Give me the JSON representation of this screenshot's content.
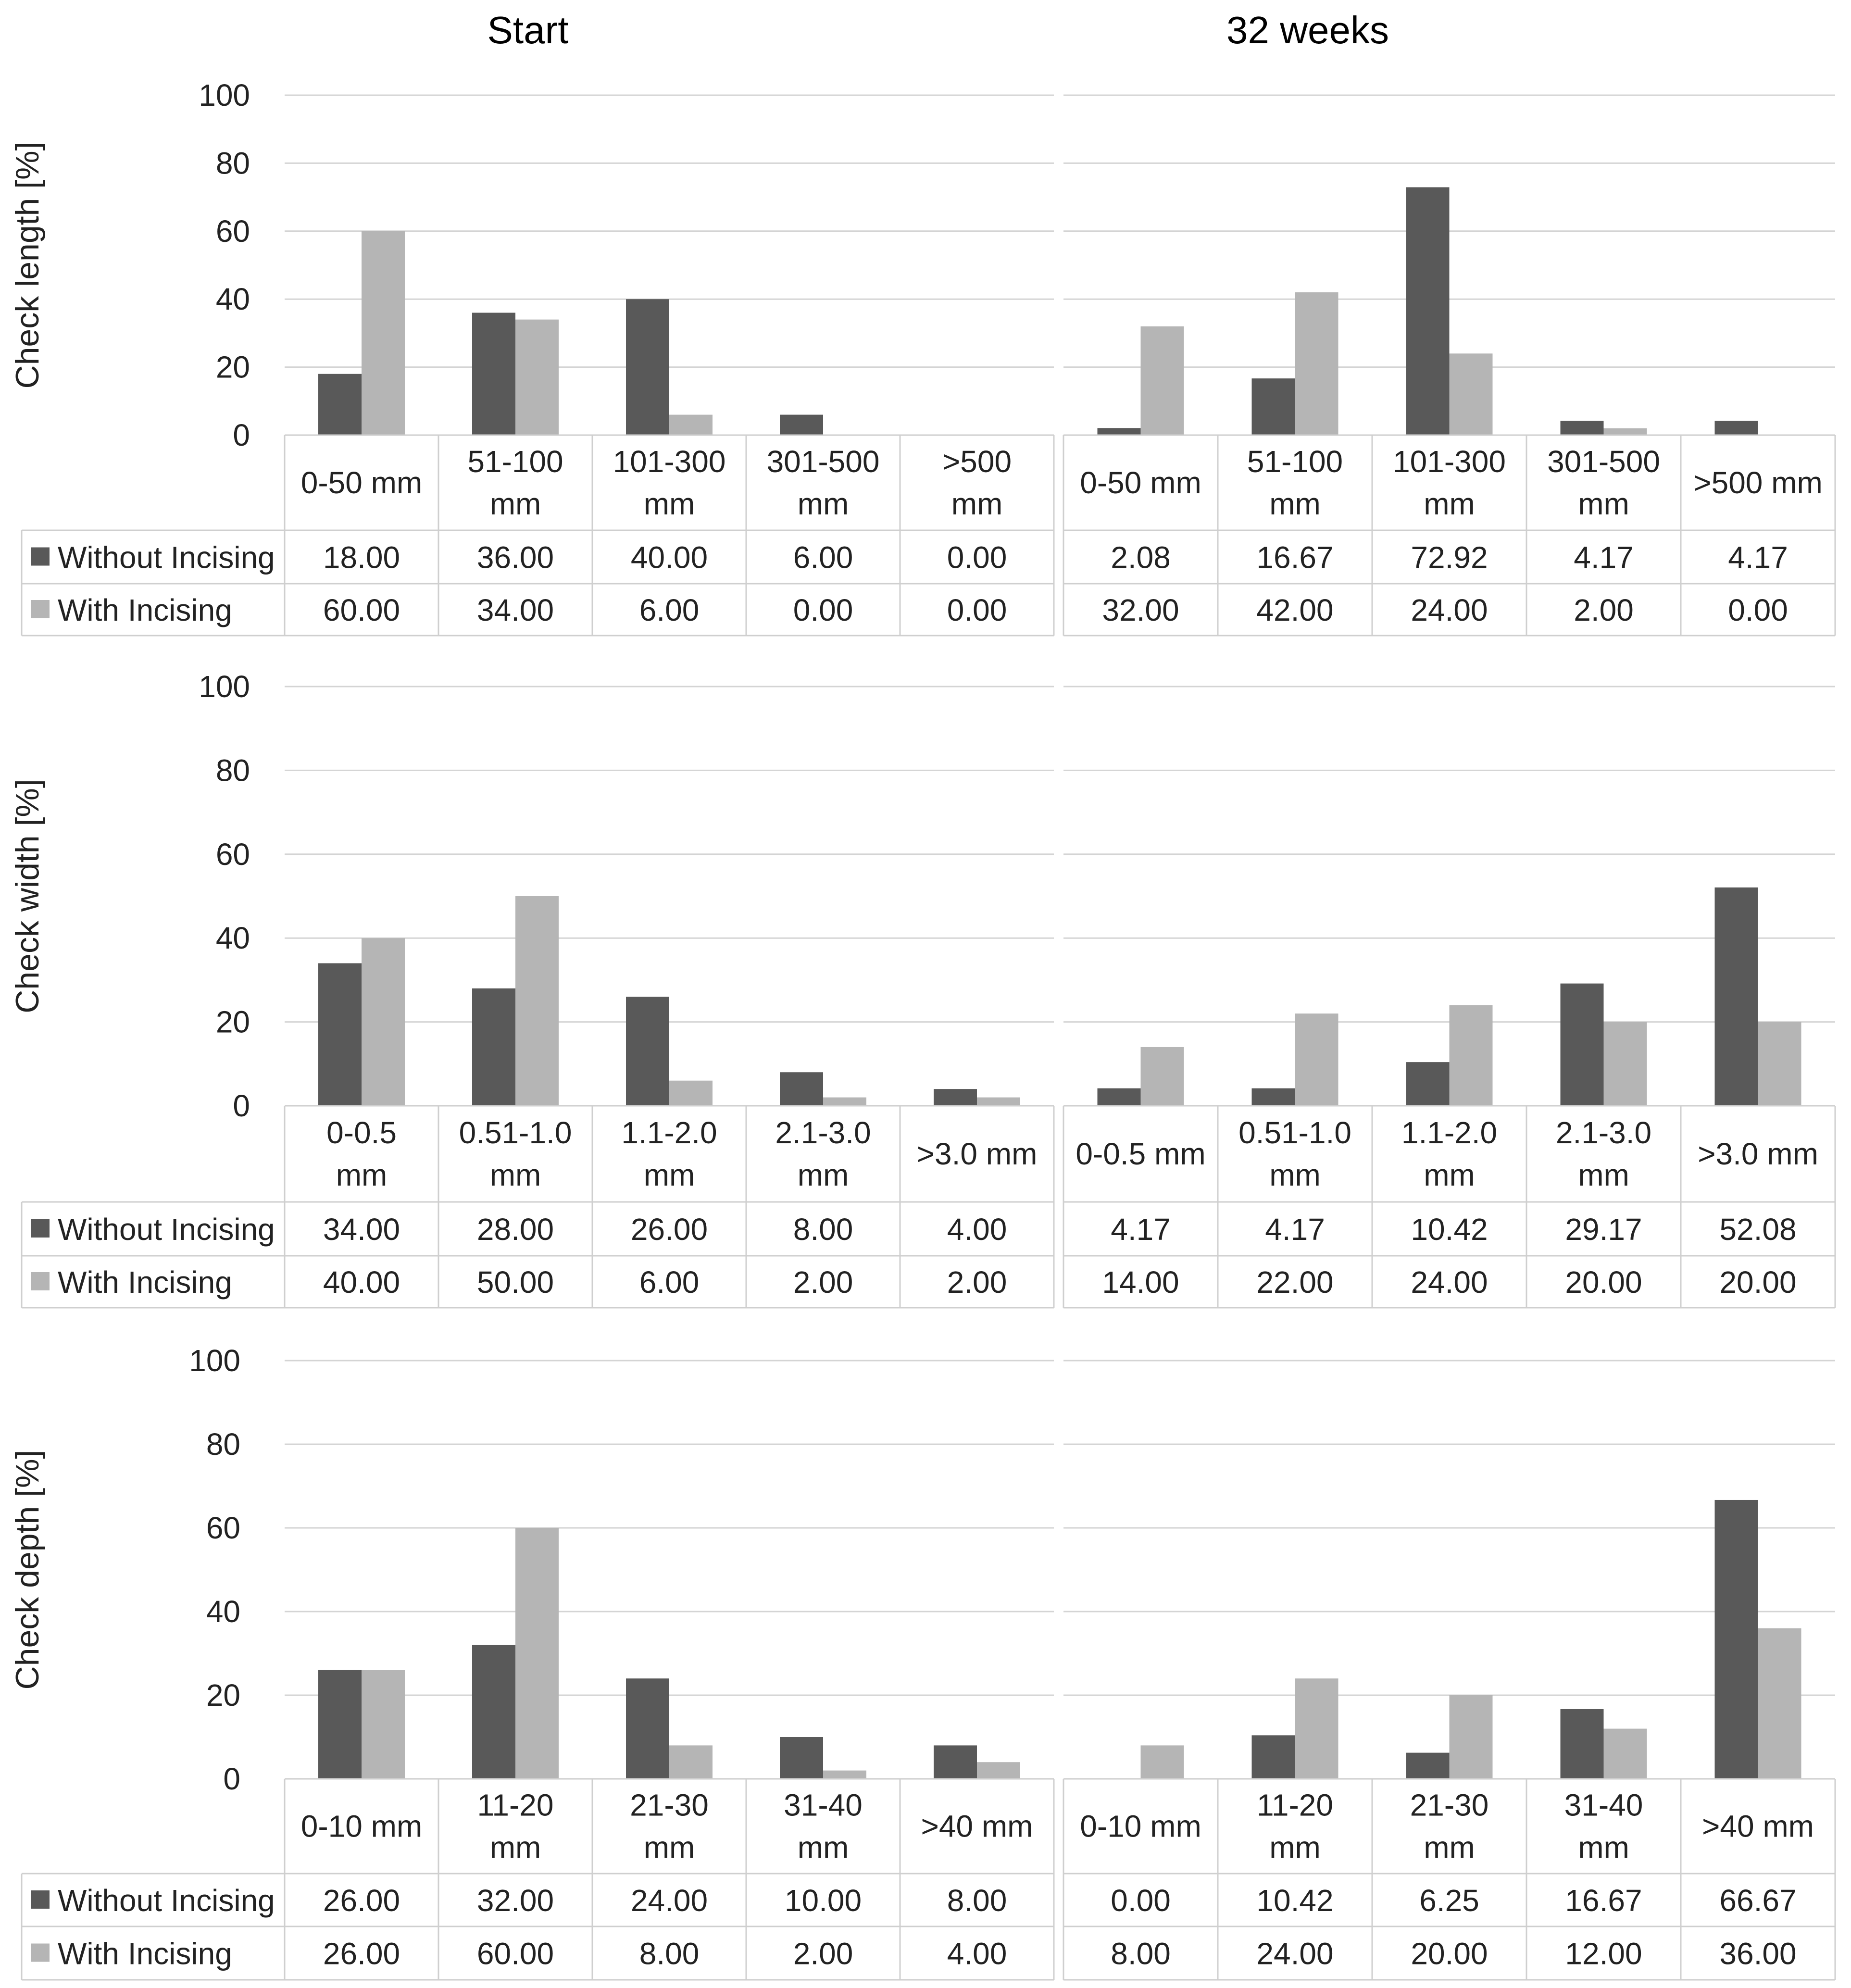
{
  "column_titles": [
    "Start",
    "32 weeks"
  ],
  "legend": {
    "without": "Without Incising",
    "with": "With Incising",
    "without_color": "#595959",
    "with_color": "#b5b5b5"
  },
  "chart_data": [
    {
      "type": "bar",
      "panel": "check-length",
      "period": "Start",
      "ylabel": "Check length [%]",
      "ylim": [
        0,
        100
      ],
      "yticks": [
        0,
        20,
        40,
        60,
        80,
        100
      ],
      "categories": [
        [
          "0-50 mm"
        ],
        [
          "51-100",
          "mm"
        ],
        [
          "101-300",
          "mm"
        ],
        [
          "301-500",
          "mm"
        ],
        [
          ">500",
          "mm"
        ]
      ],
      "series": [
        {
          "name": "Without Incising",
          "values": [
            "18.00",
            "36.00",
            "40.00",
            "6.00",
            "0.00"
          ]
        },
        {
          "name": "With Incising",
          "values": [
            "60.00",
            "34.00",
            "6.00",
            "0.00",
            "0.00"
          ]
        }
      ]
    },
    {
      "type": "bar",
      "panel": "check-length",
      "period": "32 weeks",
      "ylabel": "Check length [%]",
      "ylim": [
        0,
        100
      ],
      "yticks": [
        0,
        20,
        40,
        60,
        80,
        100
      ],
      "categories": [
        [
          "0-50 mm"
        ],
        [
          "51-100",
          "mm"
        ],
        [
          "101-300",
          "mm"
        ],
        [
          "301-500",
          "mm"
        ],
        [
          ">500 mm"
        ]
      ],
      "series": [
        {
          "name": "Without Incising",
          "values": [
            "2.08",
            "16.67",
            "72.92",
            "4.17",
            "4.17"
          ]
        },
        {
          "name": "With Incising",
          "values": [
            "32.00",
            "42.00",
            "24.00",
            "2.00",
            "0.00"
          ]
        }
      ]
    },
    {
      "type": "bar",
      "panel": "check-width",
      "period": "Start",
      "ylabel": "Check width [%]",
      "ylim": [
        0,
        100
      ],
      "yticks": [
        0,
        20,
        40,
        60,
        80,
        100
      ],
      "categories": [
        [
          "0-0.5",
          "mm"
        ],
        [
          "0.51-1.0",
          "mm"
        ],
        [
          "1.1-2.0",
          "mm"
        ],
        [
          "2.1-3.0",
          "mm"
        ],
        [
          ">3.0 mm"
        ]
      ],
      "series": [
        {
          "name": "Without Incising",
          "values": [
            "34.00",
            "28.00",
            "26.00",
            "8.00",
            "4.00"
          ]
        },
        {
          "name": "With Incising",
          "values": [
            "40.00",
            "50.00",
            "6.00",
            "2.00",
            "2.00"
          ]
        }
      ]
    },
    {
      "type": "bar",
      "panel": "check-width",
      "period": "32 weeks",
      "ylabel": "Check width [%]",
      "ylim": [
        0,
        100
      ],
      "yticks": [
        0,
        20,
        40,
        60,
        80,
        100
      ],
      "categories": [
        [
          "0-0.5 mm"
        ],
        [
          "0.51-1.0",
          "mm"
        ],
        [
          "1.1-2.0",
          "mm"
        ],
        [
          "2.1-3.0",
          "mm"
        ],
        [
          ">3.0 mm"
        ]
      ],
      "series": [
        {
          "name": "Without Incising",
          "values": [
            "4.17",
            "4.17",
            "10.42",
            "29.17",
            "52.08"
          ]
        },
        {
          "name": "With Incising",
          "values": [
            "14.00",
            "22.00",
            "24.00",
            "20.00",
            "20.00"
          ]
        }
      ]
    },
    {
      "type": "bar",
      "panel": "check-depth",
      "period": "Start",
      "ylabel": "Check depth [%]",
      "ylim": [
        0,
        100
      ],
      "yticks": [
        0,
        20,
        40,
        60,
        80,
        100
      ],
      "categories": [
        [
          "0-10 mm"
        ],
        [
          "11-20",
          "mm"
        ],
        [
          "21-30",
          "mm"
        ],
        [
          "31-40",
          "mm"
        ],
        [
          ">40 mm"
        ]
      ],
      "series": [
        {
          "name": "Without Incising",
          "values": [
            "26.00",
            "32.00",
            "24.00",
            "10.00",
            "8.00"
          ]
        },
        {
          "name": "With Incising",
          "values": [
            "26.00",
            "60.00",
            "8.00",
            "2.00",
            "4.00"
          ]
        }
      ]
    },
    {
      "type": "bar",
      "panel": "check-depth",
      "period": "32 weeks",
      "ylabel": "Check depth [%]",
      "ylim": [
        0,
        100
      ],
      "yticks": [
        0,
        20,
        40,
        60,
        80,
        100
      ],
      "categories": [
        [
          "0-10 mm"
        ],
        [
          "11-20",
          "mm"
        ],
        [
          "21-30",
          "mm"
        ],
        [
          "31-40",
          "mm"
        ],
        [
          ">40 mm"
        ]
      ],
      "series": [
        {
          "name": "Without Incising",
          "values": [
            "0.00",
            "10.42",
            "6.25",
            "16.67",
            "66.67"
          ]
        },
        {
          "name": "With Incising",
          "values": [
            "8.00",
            "24.00",
            "20.00",
            "12.00",
            "36.00"
          ]
        }
      ]
    }
  ]
}
